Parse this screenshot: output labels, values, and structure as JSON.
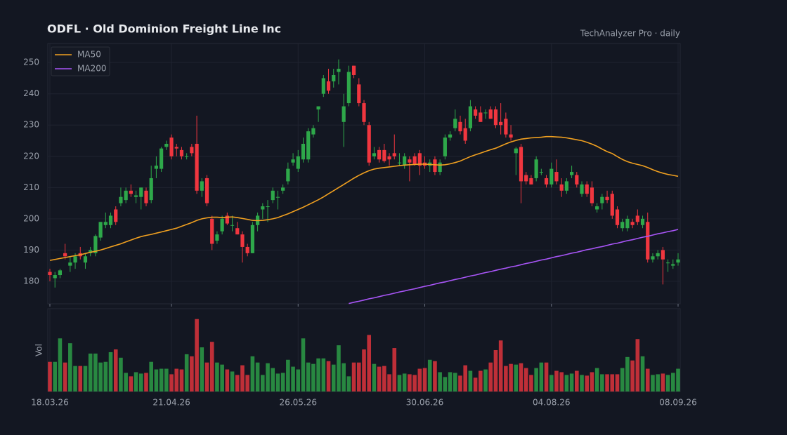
{
  "chart_data": {
    "type": "candlestick",
    "title": "ODFL  ·  Old Dominion Freight Line Inc",
    "subtitle": "TechAnalyzer Pro · daily",
    "x": [
      "18.03.26",
      "19.03.26",
      "20.03.26",
      "23.03.26",
      "24.03.26",
      "25.03.26",
      "26.03.26",
      "27.03.26",
      "30.03.26",
      "31.03.26",
      "01.04.26",
      "02.04.26",
      "03.04.26",
      "06.04.26",
      "07.04.26",
      "08.04.26",
      "09.04.26",
      "10.04.26",
      "13.04.26",
      "14.04.26",
      "15.04.26",
      "16.04.26",
      "17.04.26",
      "20.04.26",
      "21.04.26",
      "22.04.26",
      "23.04.26",
      "24.04.26",
      "27.04.26",
      "28.04.26",
      "29.04.26",
      "30.04.26",
      "01.05.26",
      "04.05.26",
      "05.05.26",
      "06.05.26",
      "07.05.26",
      "08.05.26",
      "11.05.26",
      "12.05.26",
      "13.05.26",
      "14.05.26",
      "15.05.26",
      "18.05.26",
      "19.05.26",
      "20.05.26",
      "21.05.26",
      "22.05.26",
      "25.05.26",
      "26.05.26",
      "27.05.26",
      "28.05.26",
      "29.05.26",
      "01.06.26",
      "02.06.26",
      "03.06.26",
      "04.06.26",
      "05.06.26",
      "08.06.26",
      "09.06.26",
      "10.06.26",
      "11.06.26",
      "12.06.26",
      "15.06.26",
      "16.06.26",
      "17.06.26",
      "18.06.26",
      "19.06.26",
      "22.06.26",
      "23.06.26",
      "24.06.26",
      "25.06.26",
      "26.06.26",
      "29.06.26",
      "30.06.26",
      "01.07.26",
      "02.07.26",
      "03.07.26",
      "06.07.26",
      "07.07.26",
      "08.07.26",
      "09.07.26",
      "10.07.26",
      "13.07.26",
      "14.07.26",
      "15.07.26",
      "16.07.26",
      "17.07.26",
      "20.07.26",
      "21.07.26",
      "22.07.26",
      "23.07.26",
      "24.07.26",
      "27.07.26",
      "28.07.26",
      "29.07.26",
      "30.07.26",
      "31.07.26",
      "03.08.26",
      "04.08.26",
      "05.08.26",
      "06.08.26",
      "07.08.26",
      "10.08.26",
      "11.08.26",
      "12.08.26",
      "13.08.26",
      "14.08.26",
      "17.08.26",
      "18.08.26",
      "19.08.26",
      "20.08.26",
      "21.08.26",
      "24.08.26",
      "25.08.26",
      "26.08.26",
      "27.08.26",
      "28.08.26",
      "31.08.26",
      "01.09.26",
      "02.09.26",
      "03.09.26",
      "04.09.26",
      "07.09.26",
      "08.09.26"
    ],
    "open": [
      183,
      181,
      182,
      189,
      185,
      186,
      189,
      186,
      189,
      189,
      194,
      198,
      198,
      203,
      205,
      206,
      209,
      207,
      207,
      209,
      206,
      216,
      216,
      223,
      226,
      223,
      222,
      220,
      223,
      224,
      209,
      213,
      200,
      193,
      196,
      201,
      198,
      197,
      195,
      191,
      189,
      198,
      203,
      204,
      206,
      207,
      209,
      212,
      218,
      216,
      219,
      219,
      227,
      235,
      240,
      244,
      244,
      247,
      231,
      237,
      249,
      243,
      237,
      230,
      220,
      222,
      222,
      220,
      221,
      218,
      217,
      219,
      220,
      221,
      218,
      217,
      219,
      215,
      220,
      226,
      229,
      231,
      229,
      229,
      235,
      234,
      234,
      235,
      235,
      231,
      232,
      227,
      221,
      223,
      214,
      213,
      213,
      215,
      213,
      211,
      215,
      211,
      209,
      214,
      214,
      208,
      211,
      210,
      203,
      205,
      207,
      208,
      203,
      197,
      197,
      199,
      201,
      198,
      199,
      187,
      188,
      190,
      186,
      185,
      186
    ],
    "high": [
      184,
      183,
      184,
      192,
      188,
      189,
      191,
      189,
      191,
      195,
      199,
      202,
      202,
      204,
      210,
      210,
      211,
      209,
      210,
      210,
      217,
      220,
      223,
      225,
      227,
      224,
      223,
      221,
      224,
      233,
      213,
      214,
      201,
      196,
      201,
      202,
      201,
      199,
      196,
      192,
      199,
      202,
      205,
      206,
      210,
      209,
      211,
      218,
      221,
      222,
      226,
      229,
      230,
      236,
      246,
      248,
      248,
      251,
      240,
      249,
      249,
      245,
      238,
      231,
      223,
      223,
      224,
      221,
      227,
      221,
      221,
      220,
      221,
      222,
      220,
      219,
      220,
      219,
      227,
      228,
      235,
      233,
      232,
      238,
      236,
      236,
      235,
      236,
      236,
      237,
      234,
      230,
      223,
      224,
      215,
      214,
      220,
      216,
      214,
      218,
      219,
      213,
      213,
      217,
      215,
      212,
      212,
      212,
      205,
      208,
      209,
      209,
      204,
      200,
      201,
      200,
      203,
      201,
      202,
      189,
      190,
      191,
      187,
      187,
      189
    ],
    "low": [
      180,
      178,
      181,
      187,
      183,
      184,
      187,
      184,
      188,
      188,
      193,
      197,
      197,
      198,
      204,
      205,
      207,
      205,
      203,
      204,
      205,
      213,
      215,
      222,
      219,
      220,
      219,
      219,
      220,
      208,
      207,
      204,
      190,
      192,
      195,
      198,
      196,
      195,
      186,
      188,
      189,
      196,
      200,
      199,
      205,
      203,
      208,
      211,
      217,
      215,
      218,
      218,
      226,
      231,
      239,
      240,
      242,
      243,
      223,
      236,
      245,
      236,
      230,
      217,
      219,
      218,
      218,
      217,
      219,
      217,
      216,
      212,
      217,
      214,
      216,
      215,
      214,
      214,
      219,
      225,
      228,
      227,
      224,
      228,
      232,
      231,
      232,
      232,
      229,
      227,
      226,
      225,
      214,
      205,
      211,
      211,
      212,
      214,
      210,
      210,
      211,
      207,
      208,
      213,
      210,
      207,
      207,
      204,
      202,
      203,
      205,
      200,
      197,
      196,
      196,
      197,
      198,
      197,
      186,
      186,
      187,
      179,
      183,
      184,
      185
    ],
    "close": [
      182,
      182,
      183.5,
      188,
      186,
      188,
      188,
      188,
      190,
      194.5,
      199,
      199,
      201,
      199,
      207,
      209,
      208,
      207.5,
      210,
      205,
      213,
      217,
      222.5,
      224,
      220,
      222.5,
      220,
      220,
      221,
      209,
      212,
      205,
      192,
      195,
      200,
      198.5,
      198,
      195,
      191,
      189,
      198,
      201,
      204,
      204,
      209,
      207,
      210,
      216,
      219,
      220,
      224,
      228,
      229,
      236,
      245,
      241,
      246,
      248,
      236,
      247,
      246,
      237,
      231,
      218,
      221,
      219,
      218.5,
      219,
      220,
      218,
      220,
      218,
      217.5,
      217,
      217,
      218,
      215,
      218,
      226,
      227,
      232,
      228,
      225,
      236,
      233,
      231,
      234,
      232,
      230,
      230,
      227,
      226,
      222.5,
      212,
      212,
      211,
      219,
      215,
      211,
      216,
      212,
      209,
      212,
      215,
      211,
      211,
      208,
      205,
      204,
      207,
      206,
      201,
      198,
      199,
      200,
      198,
      199,
      200,
      187,
      188,
      189,
      187,
      186,
      185.5,
      187
    ],
    "volume": [
      430,
      430,
      770,
      420,
      700,
      370,
      370,
      370,
      550,
      550,
      420,
      430,
      570,
      610,
      490,
      270,
      220,
      280,
      260,
      270,
      430,
      320,
      330,
      330,
      250,
      330,
      320,
      540,
      510,
      1050,
      640,
      420,
      720,
      420,
      390,
      320,
      290,
      240,
      380,
      240,
      510,
      420,
      240,
      410,
      340,
      260,
      270,
      460,
      360,
      320,
      770,
      420,
      400,
      480,
      480,
      440,
      390,
      670,
      410,
      220,
      420,
      420,
      610,
      820,
      400,
      360,
      370,
      250,
      630,
      240,
      260,
      250,
      240,
      330,
      340,
      460,
      440,
      280,
      210,
      280,
      270,
      230,
      380,
      300,
      200,
      300,
      320,
      420,
      600,
      740,
      370,
      400,
      390,
      410,
      340,
      240,
      340,
      420,
      420,
      240,
      300,
      280,
      240,
      260,
      300,
      240,
      230,
      280,
      340,
      250,
      250,
      250,
      250,
      340,
      500,
      450,
      760,
      510,
      330,
      240,
      250,
      260,
      240,
      270,
      330
    ],
    "series": [
      {
        "name": "MA50",
        "color": "#f0a020",
        "values": [
          186.7,
          187.0,
          187.3,
          187.6,
          187.9,
          188.2,
          188.5,
          188.9,
          189.3,
          189.6,
          190.0,
          190.5,
          191.0,
          191.5,
          192.0,
          192.6,
          193.2,
          193.8,
          194.3,
          194.7,
          195.0,
          195.4,
          195.8,
          196.2,
          196.6,
          197.0,
          197.6,
          198.2,
          198.8,
          199.5,
          200.0,
          200.3,
          200.5,
          200.5,
          200.4,
          200.5,
          200.6,
          200.4,
          200.1,
          199.8,
          199.5,
          199.4,
          199.5,
          199.7,
          200.0,
          200.4,
          201.0,
          201.6,
          202.3,
          203.0,
          203.7,
          204.5,
          205.3,
          206.1,
          207.0,
          208.0,
          209.0,
          210.0,
          211.0,
          212.0,
          213.0,
          213.9,
          214.7,
          215.4,
          215.9,
          216.2,
          216.4,
          216.6,
          216.8,
          217.0,
          217.2,
          217.3,
          217.4,
          217.5,
          217.5,
          217.4,
          217.3,
          217.2,
          217.3,
          217.6,
          218.0,
          218.5,
          219.2,
          219.9,
          220.5,
          221.0,
          221.6,
          222.1,
          222.6,
          223.3,
          224.0,
          224.6,
          225.1,
          225.5,
          225.7,
          225.9,
          226.0,
          226.1,
          226.3,
          226.3,
          226.2,
          226.1,
          225.9,
          225.6,
          225.3,
          225.0,
          224.5,
          223.9,
          223.2,
          222.3,
          221.5,
          220.9,
          219.9,
          219.0,
          218.3,
          217.8,
          217.4,
          217.0,
          216.4,
          215.7,
          215.1,
          214.6,
          214.2,
          213.9,
          213.6
        ]
      },
      {
        "name": "MA200",
        "color": "#a855f7",
        "values": [
          null,
          null,
          null,
          null,
          null,
          null,
          null,
          null,
          null,
          null,
          null,
          null,
          null,
          null,
          null,
          null,
          null,
          null,
          null,
          null,
          null,
          null,
          null,
          null,
          null,
          null,
          null,
          null,
          null,
          null,
          null,
          null,
          null,
          null,
          null,
          null,
          null,
          null,
          null,
          null,
          null,
          null,
          null,
          null,
          null,
          null,
          null,
          null,
          null,
          null,
          null,
          null,
          null,
          null,
          null,
          null,
          null,
          null,
          null,
          172.9,
          173.3,
          173.6,
          174.0,
          174.4,
          174.7,
          175.1,
          175.5,
          175.8,
          176.2,
          176.6,
          176.9,
          177.3,
          177.6,
          178.0,
          178.4,
          178.7,
          179.1,
          179.5,
          179.8,
          180.2,
          180.6,
          180.9,
          181.3,
          181.7,
          182.0,
          182.4,
          182.8,
          183.1,
          183.5,
          183.9,
          184.2,
          184.6,
          184.9,
          185.3,
          185.7,
          186.0,
          186.4,
          186.8,
          187.1,
          187.5,
          187.9,
          188.2,
          188.6,
          189.0,
          189.3,
          189.7,
          190.1,
          190.4,
          190.8,
          191.1,
          191.5,
          191.9,
          192.2,
          192.6,
          193.0,
          193.3,
          193.7,
          194.1,
          194.4,
          194.8,
          195.2,
          195.5,
          195.9,
          196.2,
          196.6
        ]
      }
    ],
    "up_color": "#2ea84a",
    "down_color": "#f0363f",
    "ylim": [
      172.8,
      256.1
    ],
    "yticks": [
      180,
      190,
      200,
      210,
      220,
      230,
      240,
      250
    ],
    "xticks": [
      "18.03.26",
      "21.04.26",
      "26.05.26",
      "30.06.26",
      "04.08.26",
      "08.09.26"
    ],
    "volume_label": "Vol",
    "volume_ylim": [
      0,
      1200
    ],
    "grid": true,
    "legend": "upper left"
  }
}
